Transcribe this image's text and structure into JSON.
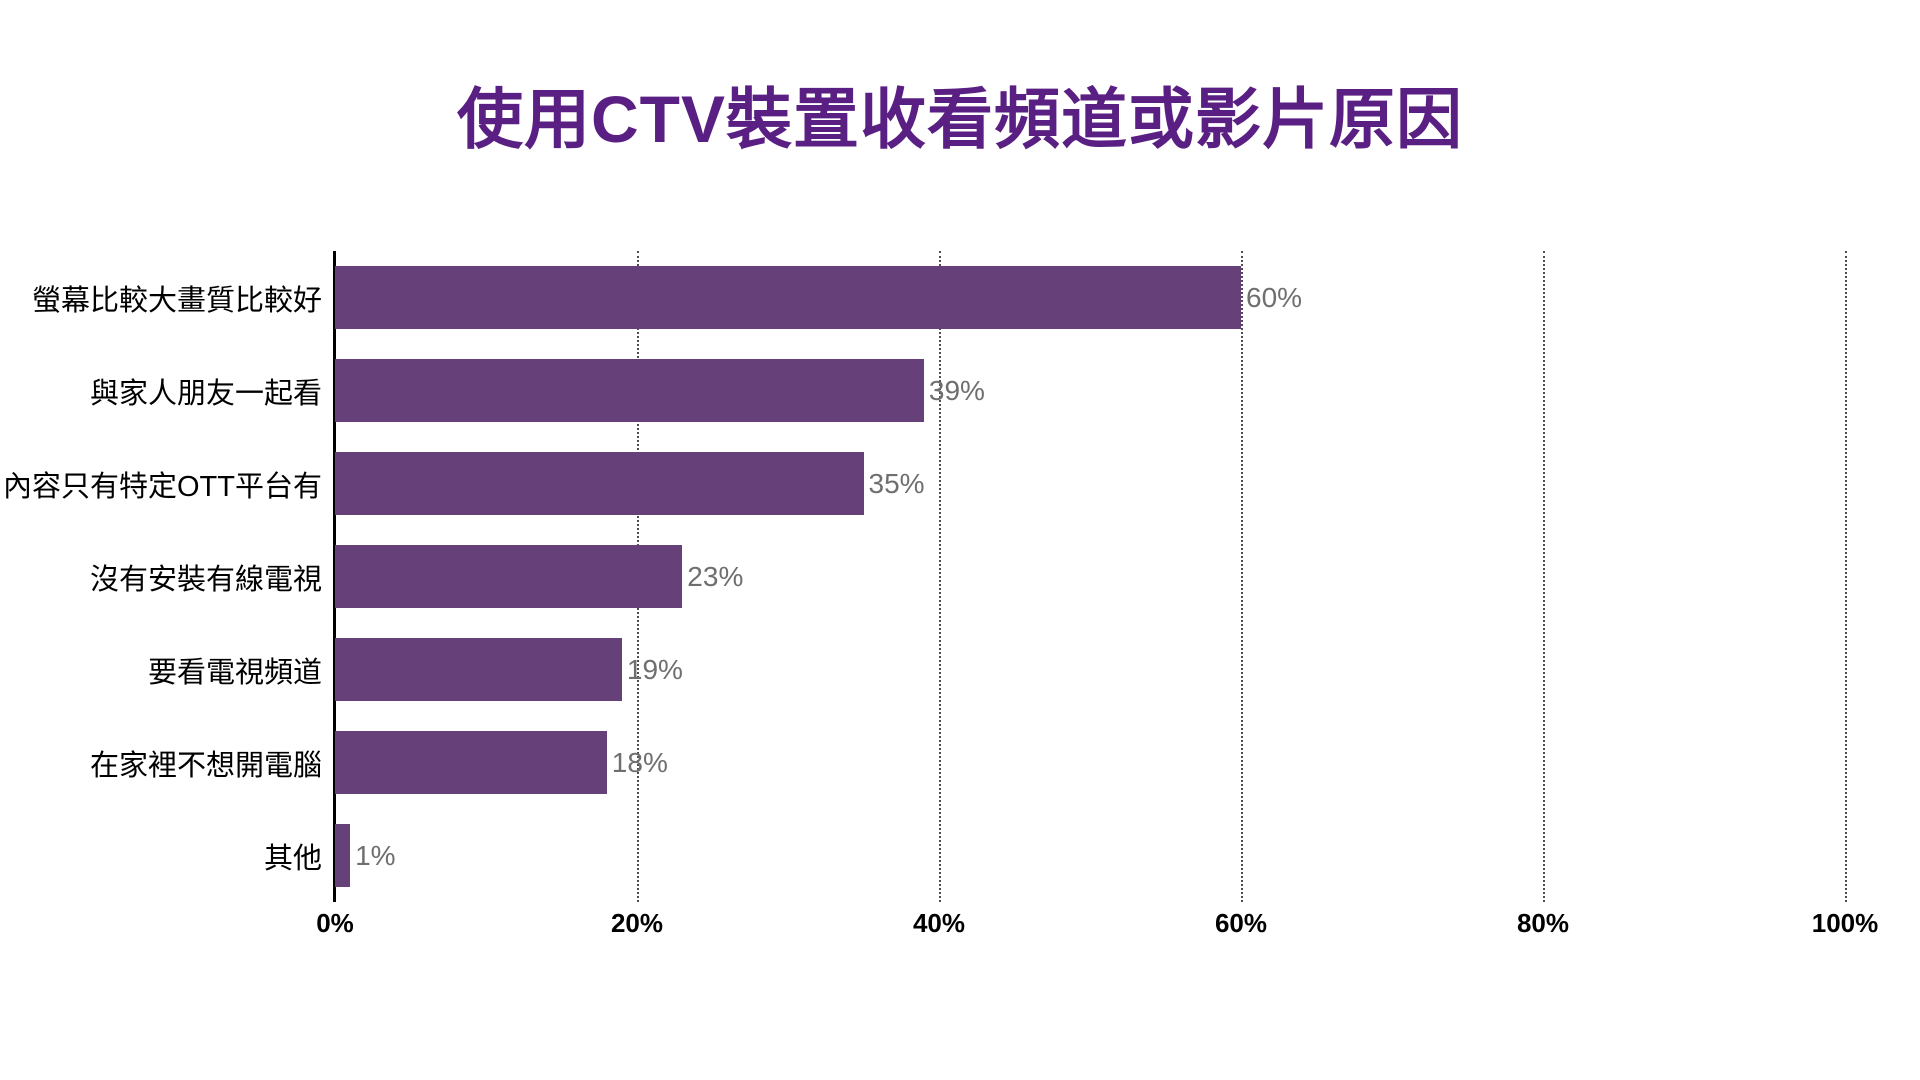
{
  "title": "使用CTV裝置收看頻道或影片原因",
  "colors": {
    "title": "#5a1f82",
    "bar": "#664179",
    "value_label": "#6f6f6f",
    "axis": "#000000",
    "gridline": "#4d4d4d",
    "category_label": "#000000",
    "background": "#ffffff"
  },
  "chart_data": {
    "type": "bar",
    "orientation": "horizontal",
    "title": "使用CTV裝置收看頻道或影片原因",
    "categories": [
      "螢幕比較大畫質比較好",
      "與家人朋友一起看",
      "內容只有特定OTT平台有",
      "沒有安裝有線電視",
      "要看電視頻道",
      "在家裡不想開電腦",
      "其他"
    ],
    "values": [
      60,
      39,
      35,
      23,
      19,
      18,
      1
    ],
    "value_labels": [
      "60%",
      "39%",
      "35%",
      "23%",
      "19%",
      "18%",
      "1%"
    ],
    "xlabel": "",
    "ylabel": "",
    "xlim": [
      0,
      100
    ],
    "x_tick_values": [
      0,
      20,
      40,
      60,
      80,
      100
    ],
    "x_tick_labels": [
      "0%",
      "20%",
      "40%",
      "60%",
      "80%",
      "100%"
    ],
    "grid": "vertical-dotted",
    "legend": "none"
  }
}
